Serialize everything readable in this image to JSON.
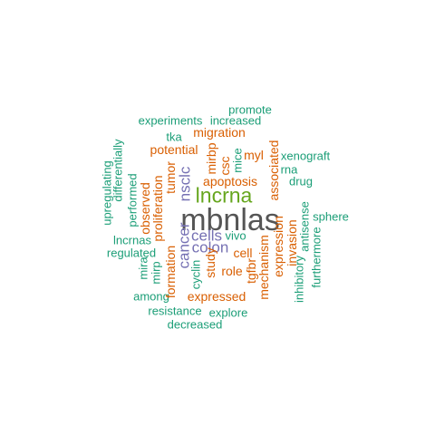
{
  "palette": {
    "green": "#1b9e77",
    "orange": "#d95f02",
    "purple": "#7570b3",
    "lime": "#66a61e",
    "dark": "#555555"
  },
  "words": [
    {
      "text": "mbnlas",
      "color": "dark"
    },
    {
      "text": "lncrna",
      "color": "lime"
    },
    {
      "text": "cells",
      "color": "purple"
    },
    {
      "text": "colon",
      "color": "purple"
    },
    {
      "text": "cancer",
      "color": "purple"
    },
    {
      "text": "nsclc",
      "color": "purple"
    },
    {
      "text": "proliferation",
      "color": "orange"
    },
    {
      "text": "expression",
      "color": "orange"
    },
    {
      "text": "apoptosis",
      "color": "orange"
    },
    {
      "text": "study",
      "color": "orange"
    },
    {
      "text": "cell",
      "color": "orange"
    },
    {
      "text": "role",
      "color": "orange"
    },
    {
      "text": "mechanism",
      "color": "orange"
    },
    {
      "text": "formation",
      "color": "orange"
    },
    {
      "text": "tumor",
      "color": "orange"
    },
    {
      "text": "potential",
      "color": "orange"
    },
    {
      "text": "migration",
      "color": "orange"
    },
    {
      "text": "invasion",
      "color": "orange"
    },
    {
      "text": "expressed",
      "color": "orange"
    },
    {
      "text": "associated",
      "color": "orange"
    },
    {
      "text": "myl",
      "color": "orange"
    },
    {
      "text": "csc",
      "color": "orange"
    },
    {
      "text": "mirbp",
      "color": "orange"
    },
    {
      "text": "observed",
      "color": "orange"
    },
    {
      "text": "tgfbr",
      "color": "orange"
    },
    {
      "text": "promote",
      "color": "green"
    },
    {
      "text": "experiments",
      "color": "green"
    },
    {
      "text": "increased",
      "color": "green"
    },
    {
      "text": "tka",
      "color": "green"
    },
    {
      "text": "mice",
      "color": "green"
    },
    {
      "text": "xenograft",
      "color": "green"
    },
    {
      "text": "rna",
      "color": "green"
    },
    {
      "text": "drug",
      "color": "green"
    },
    {
      "text": "differentially",
      "color": "green"
    },
    {
      "text": "upregulating",
      "color": "green"
    },
    {
      "text": "performed",
      "color": "green"
    },
    {
      "text": "vivo",
      "color": "green"
    },
    {
      "text": "sphere",
      "color": "green"
    },
    {
      "text": "lncrnas",
      "color": "green"
    },
    {
      "text": "regulated",
      "color": "green"
    },
    {
      "text": "antisense",
      "color": "green"
    },
    {
      "text": "mira",
      "color": "green"
    },
    {
      "text": "mirp",
      "color": "green"
    },
    {
      "text": "cyclin",
      "color": "green"
    },
    {
      "text": "furthermore",
      "color": "green"
    },
    {
      "text": "inhibitory",
      "color": "green"
    },
    {
      "text": "among",
      "color": "green"
    },
    {
      "text": "resistance",
      "color": "green"
    },
    {
      "text": "explore",
      "color": "green"
    },
    {
      "text": "decreased",
      "color": "green"
    }
  ]
}
